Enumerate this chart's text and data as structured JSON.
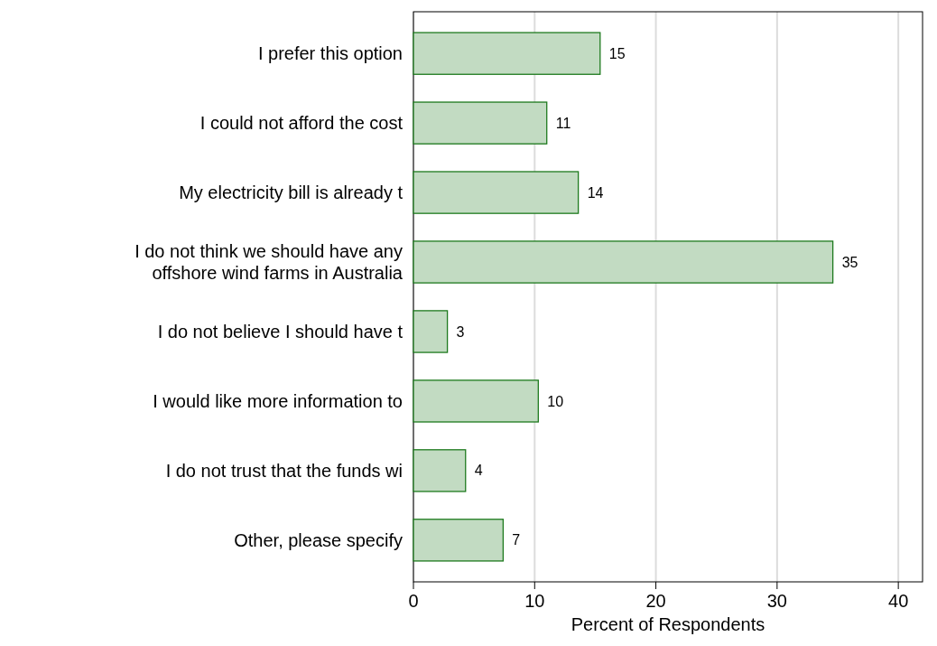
{
  "chart_data": {
    "type": "bar",
    "orientation": "horizontal",
    "xlabel": "Percent of Respondents",
    "categories": [
      "I prefer this option",
      "I could not afford the cost",
      "My electricity bill is already t",
      "I do not think we should have any offshore wind farms in Australia",
      "I do not believe I should have t",
      "I would like more information to",
      "I do not trust that the funds wi",
      "Other, please specify"
    ],
    "values": [
      15.4,
      11.0,
      13.6,
      34.6,
      2.8,
      10.3,
      4.3,
      7.4
    ],
    "value_labels": [
      "15",
      "11",
      "14",
      "35",
      "3",
      "10",
      "4",
      "7"
    ],
    "color": "#c2dbc2",
    "xlim": [
      0,
      42
    ],
    "xticks": [
      0,
      10,
      20,
      30,
      40
    ],
    "grid": "x"
  }
}
